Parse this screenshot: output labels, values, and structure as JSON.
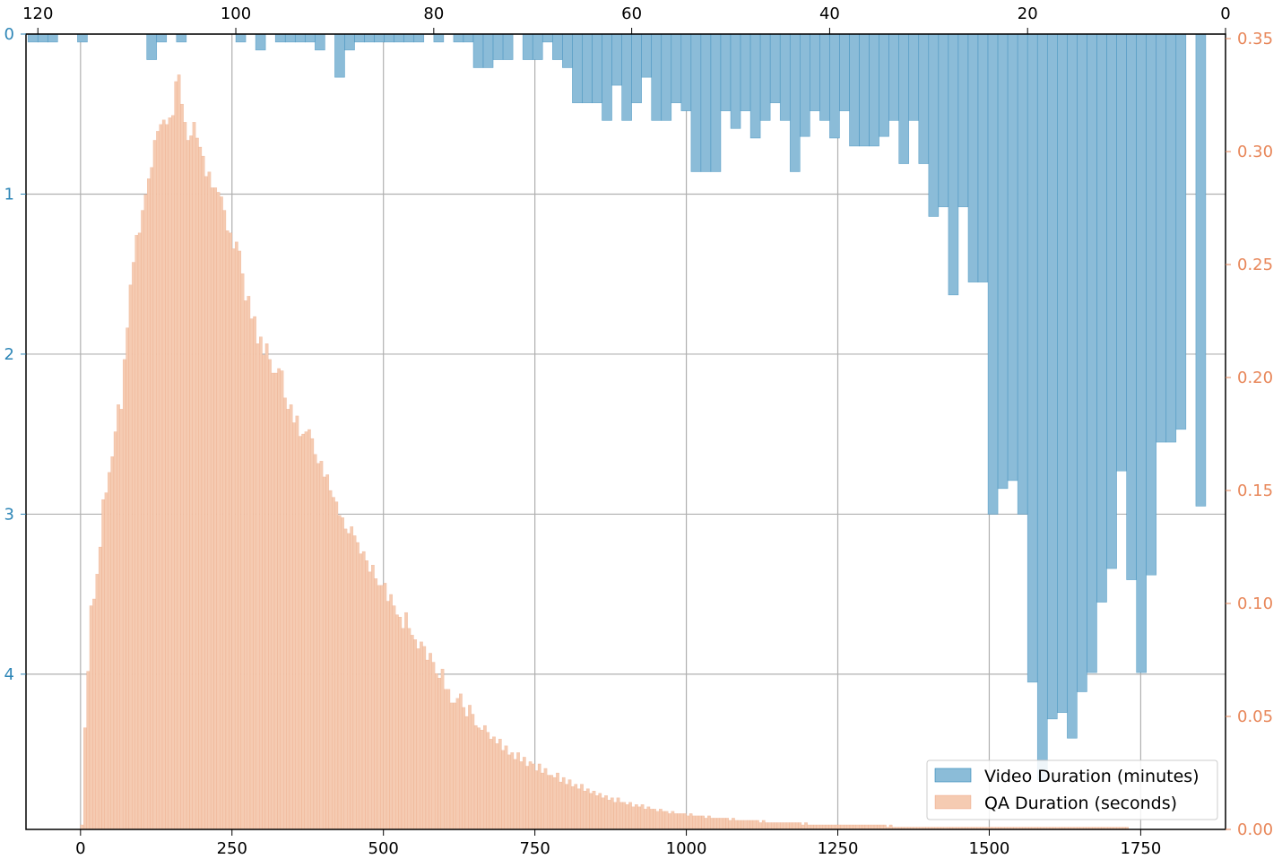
{
  "colors": {
    "video": "#2e86b7",
    "video_fill": "#8bbcd8",
    "qa": "#e8875a",
    "qa_fill": "#f5cbb2",
    "grid": "#b0b0b0",
    "axis": "#000000"
  },
  "chart_data": {
    "type": "bar",
    "grid": true,
    "legend_position": "bottom-right",
    "legend": [
      "Video Duration (minutes)",
      "QA Duration (seconds)"
    ],
    "axes": {
      "qa_x": {
        "range": [
          -90,
          1890
        ],
        "ticks": [
          0,
          250,
          500,
          750,
          1000,
          1250,
          1500,
          1750
        ],
        "labels": [
          "0",
          "250",
          "500",
          "750",
          "1000",
          "1250",
          "1500",
          "1750"
        ],
        "position": "bottom"
      },
      "video_x": {
        "range": [
          0,
          121.2
        ],
        "reversed": true,
        "ticks": [
          120,
          100,
          80,
          60,
          40,
          20,
          0
        ],
        "labels": [
          "120",
          "100",
          "80",
          "60",
          "40",
          "20",
          "0"
        ],
        "position": "top"
      },
      "video_y": {
        "range": [
          0,
          4.97
        ],
        "inverted": true,
        "ticks": [
          0,
          1,
          2,
          3,
          4
        ],
        "labels": [
          "0",
          "1",
          "2",
          "3",
          "4"
        ],
        "position": "left"
      },
      "qa_y": {
        "range": [
          0,
          0.352
        ],
        "ticks": [
          0,
          0.05,
          0.1,
          0.15,
          0.2,
          0.25,
          0.3,
          0.35
        ],
        "labels": [
          "0.00",
          "0.05",
          "0.10",
          "0.15",
          "0.20",
          "0.25",
          "0.30",
          "0.35"
        ],
        "position": "right"
      }
    },
    "series": [
      {
        "name": "Video Duration (minutes)",
        "axis": "video",
        "bin_width": 1,
        "x": [
          121,
          120,
          119,
          116,
          109,
          108,
          106,
          100,
          98,
          96,
          95,
          94,
          93,
          92,
          90,
          89,
          88,
          87,
          86,
          85,
          84,
          83,
          82,
          80,
          78,
          77,
          76,
          75,
          74,
          73,
          71,
          70,
          69,
          68,
          67,
          66,
          65,
          64,
          63,
          62,
          61,
          60,
          59,
          58,
          57,
          56,
          55,
          54,
          53,
          52,
          51,
          50,
          49,
          48,
          47,
          46,
          45,
          44,
          43,
          42,
          41,
          40,
          39,
          38,
          37,
          36,
          35,
          34,
          33,
          32,
          31,
          30,
          29,
          28,
          27,
          26,
          25,
          24,
          23,
          22,
          21,
          20,
          19,
          18,
          17,
          16,
          15,
          14,
          13,
          12,
          11,
          10,
          9,
          8,
          7,
          6,
          5,
          3
        ],
        "values": [
          0.05,
          0.05,
          0.05,
          0.05,
          0.16,
          0.05,
          0.05,
          0.05,
          0.1,
          0.05,
          0.05,
          0.05,
          0.05,
          0.1,
          0.27,
          0.1,
          0.05,
          0.05,
          0.05,
          0.05,
          0.05,
          0.05,
          0.05,
          0.05,
          0.05,
          0.05,
          0.21,
          0.21,
          0.16,
          0.16,
          0.16,
          0.16,
          0.05,
          0.16,
          0.21,
          0.43,
          0.43,
          0.43,
          0.54,
          0.32,
          0.54,
          0.43,
          0.27,
          0.54,
          0.54,
          0.43,
          0.48,
          0.86,
          0.86,
          0.86,
          0.48,
          0.59,
          0.48,
          0.65,
          0.54,
          0.43,
          0.54,
          0.86,
          0.64,
          0.48,
          0.54,
          0.65,
          0.48,
          0.7,
          0.7,
          0.7,
          0.64,
          0.54,
          0.81,
          0.54,
          0.81,
          1.14,
          1.08,
          1.63,
          1.08,
          1.55,
          1.55,
          3.0,
          2.84,
          2.79,
          3.0,
          4.05,
          4.66,
          4.28,
          4.24,
          4.4,
          4.11,
          3.99,
          3.55,
          3.34,
          2.73,
          3.41,
          3.99,
          3.38,
          2.55,
          2.55,
          2.47,
          2.95
        ]
      },
      {
        "name": "QA Duration (seconds)",
        "axis": "qa",
        "bin_start": 0,
        "bin_width": 5,
        "values": [
          0.002,
          0.045,
          0.07,
          0.099,
          0.102,
          0.113,
          0.125,
          0.146,
          0.149,
          0.158,
          0.165,
          0.176,
          0.188,
          0.186,
          0.208,
          0.222,
          0.241,
          0.251,
          0.263,
          0.264,
          0.274,
          0.281,
          0.288,
          0.293,
          0.305,
          0.309,
          0.312,
          0.314,
          0.312,
          0.315,
          0.316,
          0.331,
          0.334,
          0.321,
          0.313,
          0.305,
          0.307,
          0.313,
          0.306,
          0.302,
          0.298,
          0.289,
          0.291,
          0.284,
          0.284,
          0.282,
          0.28,
          0.274,
          0.265,
          0.264,
          0.257,
          0.26,
          0.256,
          0.246,
          0.234,
          0.236,
          0.226,
          0.227,
          0.215,
          0.218,
          0.21,
          0.215,
          0.208,
          0.202,
          0.202,
          0.204,
          0.203,
          0.191,
          0.186,
          0.188,
          0.18,
          0.183,
          0.174,
          0.175,
          0.176,
          0.177,
          0.173,
          0.166,
          0.162,
          0.163,
          0.156,
          0.157,
          0.15,
          0.147,
          0.145,
          0.139,
          0.138,
          0.133,
          0.131,
          0.134,
          0.13,
          0.127,
          0.122,
          0.123,
          0.119,
          0.114,
          0.117,
          0.111,
          0.108,
          0.108,
          0.109,
          0.101,
          0.104,
          0.099,
          0.095,
          0.094,
          0.089,
          0.096,
          0.089,
          0.086,
          0.084,
          0.08,
          0.083,
          0.081,
          0.075,
          0.078,
          0.074,
          0.069,
          0.067,
          0.071,
          0.062,
          0.062,
          0.056,
          0.056,
          0.058,
          0.06,
          0.054,
          0.05,
          0.055,
          0.051,
          0.046,
          0.045,
          0.044,
          0.046,
          0.043,
          0.04,
          0.041,
          0.038,
          0.04,
          0.035,
          0.037,
          0.033,
          0.034,
          0.031,
          0.034,
          0.03,
          0.032,
          0.028,
          0.03,
          0.029,
          0.026,
          0.029,
          0.025,
          0.027,
          0.024,
          0.024,
          0.023,
          0.025,
          0.021,
          0.023,
          0.02,
          0.022,
          0.019,
          0.02,
          0.018,
          0.02,
          0.017,
          0.018,
          0.016,
          0.017,
          0.015,
          0.016,
          0.014,
          0.015,
          0.013,
          0.014,
          0.012,
          0.014,
          0.012,
          0.012,
          0.011,
          0.012,
          0.01,
          0.011,
          0.01,
          0.011,
          0.009,
          0.01,
          0.009,
          0.009,
          0.008,
          0.009,
          0.008,
          0.008,
          0.007,
          0.008,
          0.007,
          0.007,
          0.007,
          0.007,
          0.006,
          0.007,
          0.006,
          0.006,
          0.006,
          0.006,
          0.005,
          0.006,
          0.005,
          0.005,
          0.005,
          0.005,
          0.005,
          0.005,
          0.004,
          0.005,
          0.004,
          0.004,
          0.004,
          0.004,
          0.004,
          0.004,
          0.004,
          0.004,
          0.003,
          0.004,
          0.003,
          0.003,
          0.003,
          0.003,
          0.003,
          0.003,
          0.003,
          0.003,
          0.003,
          0.003,
          0.003,
          0.003,
          0.002,
          0.003,
          0.002,
          0.002,
          0.002,
          0.002,
          0.002,
          0.002,
          0.002,
          0.002,
          0.002,
          0.002,
          0.002,
          0.002,
          0.002,
          0.002,
          0.002,
          0.002,
          0.002,
          0.002,
          0.002,
          0.002,
          0.002,
          0.002,
          0.002,
          0.002,
          0.002,
          0.002,
          0.001,
          0.002,
          0.001,
          0.001,
          0.001,
          0.001,
          0.001,
          0.001,
          0.001,
          0.001,
          0.001,
          0.001,
          0.001,
          0.001,
          0.001,
          0.001,
          0.001,
          0.001,
          0.001,
          0.001,
          0.001,
          0.001,
          0.001,
          0.001,
          0.001,
          0.001,
          0.001,
          0.001,
          0.001,
          0.001,
          0.001,
          0.001,
          0.001,
          0.001,
          0.001,
          0.001,
          0.001,
          0.001,
          0.001,
          0.001,
          0.001,
          0.001,
          0.001,
          0.001,
          0.001,
          0.001,
          0.001,
          0.001,
          0.001,
          0.001,
          0.001,
          0.001,
          0.001,
          0.001,
          0.001,
          0.001,
          0.001,
          0.001,
          0.001,
          0.001,
          0.001,
          0.001,
          0.001,
          0.001,
          0.001,
          0.001,
          0.001,
          0.001,
          0.001,
          0.001,
          0.001,
          0.001,
          0.001,
          0.001,
          0.001,
          0.001,
          0.001,
          0.001,
          0.001,
          0.001
        ]
      }
    ]
  }
}
